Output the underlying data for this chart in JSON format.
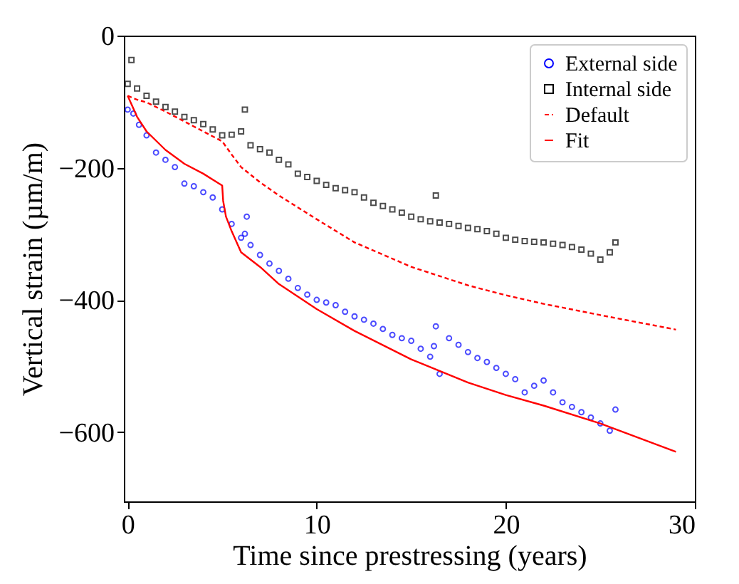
{
  "chart_data": {
    "type": "scatter",
    "xlabel": "Time since prestressing (years)",
    "ylabel": "Vertical strain (µm/m)",
    "xlim": [
      -0.2,
      30
    ],
    "ylim": [
      -705,
      0
    ],
    "xticks": [
      0,
      10,
      20,
      30
    ],
    "yticks": [
      -600,
      -400,
      -200,
      0
    ],
    "grid": false,
    "legend": "top right",
    "series": [
      {
        "name": "External side",
        "marker": "circle",
        "color": "#0000ff",
        "x": [
          0,
          0.3,
          0.6,
          1,
          1.5,
          2,
          2.5,
          3,
          3.5,
          4,
          4.5,
          5,
          5.5,
          6,
          6.2,
          6.3,
          6.5,
          7,
          7.5,
          8,
          8.5,
          9,
          9.5,
          10,
          10.5,
          11,
          11.5,
          12,
          12.5,
          13,
          13.5,
          14,
          14.5,
          15,
          15.5,
          16,
          16.2,
          16.3,
          16.5,
          17,
          17.5,
          18,
          18.5,
          19,
          19.5,
          20,
          20.5,
          21,
          21.5,
          22,
          22.5,
          23,
          23.5,
          24,
          24.5,
          25,
          25.5,
          25.8
        ],
        "values": [
          -112,
          -118,
          -135,
          -151,
          -177,
          -188,
          -199,
          -224,
          -228,
          -237,
          -245,
          -263,
          -285,
          -306,
          -300,
          -274,
          -317,
          -332,
          -345,
          -356,
          -368,
          -382,
          -392,
          -400,
          -404,
          -408,
          -418,
          -425,
          -430,
          -436,
          -444,
          -453,
          -458,
          -462,
          -474,
          -486,
          -470,
          -440,
          -512,
          -458,
          -468,
          -479,
          -488,
          -494,
          -503,
          -512,
          -520,
          -540,
          -530,
          -522,
          -540,
          -555,
          -562,
          -570,
          -578,
          -587,
          -598,
          -566
        ]
      },
      {
        "name": "Internal side",
        "marker": "square",
        "color": "#000000",
        "x": [
          0,
          0.2,
          0.5,
          1,
          1.5,
          2,
          2.5,
          3,
          3.5,
          4,
          4.5,
          5,
          5.5,
          6,
          6.2,
          6.5,
          7,
          7.5,
          8,
          8.5,
          9,
          9.5,
          10,
          10.5,
          11,
          11.5,
          12,
          12.5,
          13,
          13.5,
          14,
          14.5,
          15,
          15.5,
          16,
          16.3,
          16.5,
          17,
          17.5,
          18,
          18.5,
          19,
          19.5,
          20,
          20.5,
          21,
          21.5,
          22,
          22.5,
          23,
          23.5,
          24,
          24.5,
          25,
          25.5,
          25.8
        ],
        "values": [
          -73,
          -37,
          -80,
          -91,
          -100,
          -108,
          -115,
          -123,
          -128,
          -134,
          -142,
          -151,
          -150,
          -145,
          -112,
          -166,
          -172,
          -177,
          -188,
          -195,
          -209,
          -214,
          -220,
          -226,
          -231,
          -234,
          -237,
          -245,
          -253,
          -258,
          -263,
          -268,
          -274,
          -278,
          -281,
          -242,
          -283,
          -285,
          -288,
          -291,
          -293,
          -296,
          -300,
          -306,
          -309,
          -311,
          -312,
          -313,
          -315,
          -317,
          -320,
          -324,
          -330,
          -339,
          -328,
          -313
        ]
      },
      {
        "name": "Default",
        "type": "line",
        "line_style": "dashed",
        "color": "#ff0000",
        "x": [
          0,
          0.5,
          1,
          2,
          3,
          4,
          5,
          5.5,
          6,
          7,
          8,
          10,
          12,
          15,
          18,
          20,
          22,
          25,
          29
        ],
        "values": [
          -91,
          -97,
          -101,
          -115,
          -130,
          -145,
          -160,
          -180,
          -199,
          -222,
          -242,
          -278,
          -313,
          -350,
          -378,
          -393,
          -406,
          -423,
          -445
        ]
      },
      {
        "name": "Fit",
        "type": "line",
        "line_style": "solid",
        "color": "#ff0000",
        "x": [
          0,
          0.5,
          1,
          2,
          3,
          4,
          5,
          5.05,
          5.2,
          5.5,
          6,
          7,
          8,
          10,
          12,
          15,
          18,
          20,
          22,
          25,
          29
        ],
        "values": [
          -91,
          -123,
          -145,
          -173,
          -194,
          -209,
          -227,
          -250,
          -274,
          -296,
          -328,
          -350,
          -376,
          -414,
          -447,
          -490,
          -525,
          -544,
          -560,
          -587,
          -630
        ]
      }
    ]
  }
}
